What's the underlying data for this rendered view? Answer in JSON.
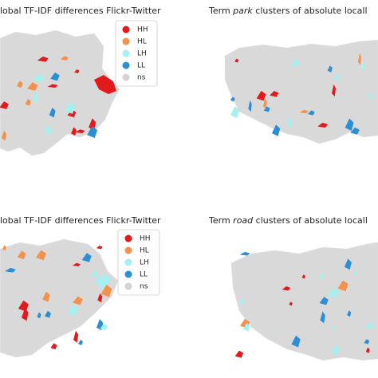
{
  "panels": [
    {
      "title": "lobal TF-IDF differences Flickr-Twitter",
      "legend": [
        {
          "label": "HH",
          "color": "#e31a1c"
        },
        {
          "label": "HL",
          "color": "#f4914a"
        },
        {
          "label": "LH",
          "color": "#a6f0f0"
        },
        {
          "label": "LL",
          "color": "#2b8fd6"
        },
        {
          "label": "ns",
          "color": "#d3d3d3"
        }
      ]
    },
    {
      "title_prefix": "Term",
      "term": "park",
      "title_suffix": "clusters of absolute locall"
    },
    {
      "title": "lobal TF-IDF differences Flickr-Twitter",
      "legend": [
        {
          "label": "HH",
          "color": "#e31a1c"
        },
        {
          "label": "HL",
          "color": "#f4914a"
        },
        {
          "label": "LH",
          "color": "#a6f0f0"
        },
        {
          "label": "LL",
          "color": "#2b8fd6"
        },
        {
          "label": "ns",
          "color": "#d3d3d3"
        }
      ]
    },
    {
      "title_prefix": "Term",
      "term": "road",
      "title_suffix": "clusters of absolute locall"
    }
  ]
}
